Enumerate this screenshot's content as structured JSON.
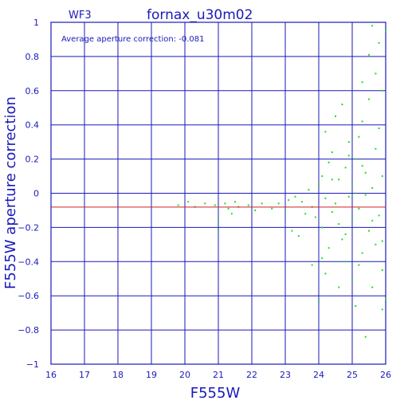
{
  "chart_data": {
    "type": "scatter",
    "title": "fornax_u30m02",
    "subtitle": "WF3",
    "annotation": "Average aperture correction:  -0.081",
    "xlabel": "F555W",
    "ylabel": "F555W aperture correction",
    "xlim": [
      16,
      26
    ],
    "ylim": [
      -1,
      1
    ],
    "x_ticks": [
      "16",
      "17",
      "18",
      "19",
      "20",
      "21",
      "22",
      "23",
      "24",
      "25",
      "26"
    ],
    "y_ticks": [
      "1",
      "0.8",
      "0.6",
      "0.4",
      "0.2",
      "0",
      "−0.2",
      "−0.4",
      "−0.6",
      "−0.8",
      "−1"
    ],
    "grid": true,
    "reference_line": -0.081,
    "colors": {
      "axis": "#1a1ab8",
      "grid": "#1a1ab8",
      "points": "#22dd22",
      "reference_line": "#cc2222"
    },
    "series": [
      {
        "values": [
          [
            19.8,
            -0.07
          ],
          [
            20.1,
            -0.05
          ],
          [
            20.3,
            -0.08
          ],
          [
            20.6,
            -0.06
          ],
          [
            20.9,
            -0.07
          ],
          [
            21.0,
            -0.21
          ],
          [
            21.0,
            -0.15
          ],
          [
            21.2,
            -0.06
          ],
          [
            21.3,
            -0.09
          ],
          [
            21.4,
            -0.12
          ],
          [
            21.5,
            -0.05
          ],
          [
            21.6,
            -0.08
          ],
          [
            21.9,
            -0.07
          ],
          [
            22.1,
            -0.1
          ],
          [
            22.3,
            -0.06
          ],
          [
            22.6,
            -0.09
          ],
          [
            22.8,
            -0.06
          ],
          [
            23.0,
            -0.11
          ],
          [
            23.1,
            -0.04
          ],
          [
            23.2,
            -0.22
          ],
          [
            23.3,
            -0.02
          ],
          [
            23.4,
            -0.25
          ],
          [
            23.5,
            -0.05
          ],
          [
            23.6,
            -0.12
          ],
          [
            23.7,
            0.02
          ],
          [
            23.8,
            -0.08
          ],
          [
            23.8,
            -0.42
          ],
          [
            23.9,
            -0.14
          ],
          [
            24.0,
            -0.63
          ],
          [
            24.0,
            0.05
          ],
          [
            24.1,
            0.1
          ],
          [
            24.1,
            -0.2
          ],
          [
            24.2,
            -0.03
          ],
          [
            24.2,
            0.36
          ],
          [
            24.3,
            0.18
          ],
          [
            24.3,
            -0.32
          ],
          [
            24.4,
            -0.11
          ],
          [
            24.4,
            0.24
          ],
          [
            24.5,
            0.45
          ],
          [
            24.5,
            -0.06
          ],
          [
            24.6,
            -0.18
          ],
          [
            24.6,
            0.08
          ],
          [
            24.7,
            0.52
          ],
          [
            24.7,
            -0.27
          ],
          [
            24.8,
            -0.4
          ],
          [
            24.8,
            0.15
          ],
          [
            24.9,
            -0.02
          ],
          [
            24.9,
            0.3
          ],
          [
            25.0,
            -0.5
          ],
          [
            25.0,
            0.06
          ],
          [
            25.0,
            -0.15
          ],
          [
            25.1,
            0.2
          ],
          [
            25.1,
            -0.66
          ],
          [
            25.2,
            0.33
          ],
          [
            25.2,
            -0.09
          ],
          [
            25.3,
            0.42
          ],
          [
            25.3,
            -0.35
          ],
          [
            25.4,
            0.12
          ],
          [
            25.4,
            -0.84
          ],
          [
            25.5,
            -0.22
          ],
          [
            25.5,
            0.55
          ],
          [
            25.6,
            0.03
          ],
          [
            25.6,
            -0.55
          ],
          [
            25.7,
            0.26
          ],
          [
            25.7,
            0.7
          ],
          [
            25.8,
            -0.13
          ],
          [
            25.8,
            0.88
          ],
          [
            25.9,
            -0.45
          ],
          [
            25.9,
            0.6
          ],
          [
            26.0,
            0.95
          ],
          [
            25.9,
            -0.68
          ],
          [
            25.6,
            0.98
          ],
          [
            25.5,
            0.81
          ],
          [
            25.8,
            0.38
          ],
          [
            25.3,
            0.65
          ],
          [
            25.7,
            -0.3
          ],
          [
            25.9,
            0.1
          ],
          [
            26.0,
            -0.62
          ],
          [
            25.4,
            -0.01
          ],
          [
            25.2,
            -0.42
          ],
          [
            24.6,
            -0.55
          ],
          [
            24.1,
            -0.38
          ],
          [
            24.9,
            0.22
          ],
          [
            25.1,
            0.0
          ],
          [
            24.4,
            0.08
          ],
          [
            25.6,
            -0.16
          ],
          [
            25.9,
            -0.28
          ],
          [
            25.3,
            0.16
          ],
          [
            24.8,
            -0.24
          ],
          [
            24.2,
            -0.47
          ]
        ]
      }
    ]
  }
}
